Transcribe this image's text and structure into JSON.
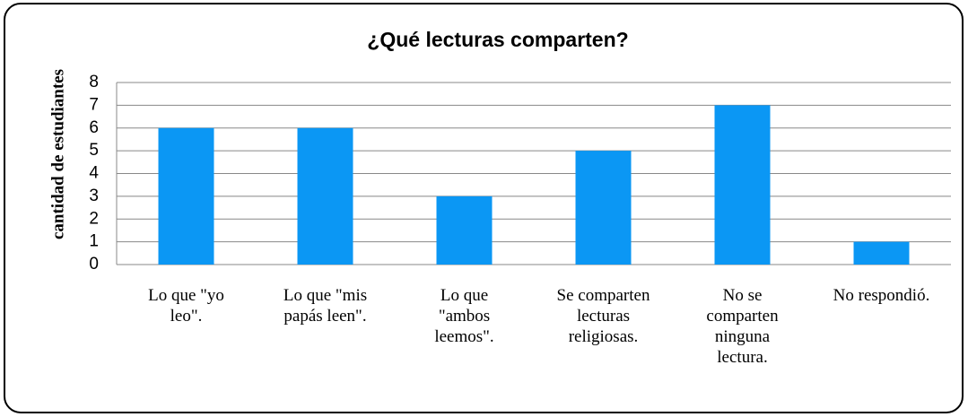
{
  "chart_data": {
    "type": "bar",
    "title": "¿Qué lecturas comparten?",
    "y_label": "cantidad de estudiantes",
    "categories": [
      "Lo que \"yo leo\".",
      "Lo que \"mis papás leen\".",
      "Lo que \"ambos leemos\".",
      "Se comparten lecturas religiosas.",
      "No se comparten ninguna lectura.",
      "No respondió."
    ],
    "values": [
      6,
      6,
      3,
      5,
      7,
      1
    ],
    "color": "#0b97f4",
    "ylim": [
      0,
      8
    ],
    "yticks": [
      0,
      1,
      2,
      3,
      4,
      5,
      6,
      7,
      8
    ],
    "grid": true
  }
}
